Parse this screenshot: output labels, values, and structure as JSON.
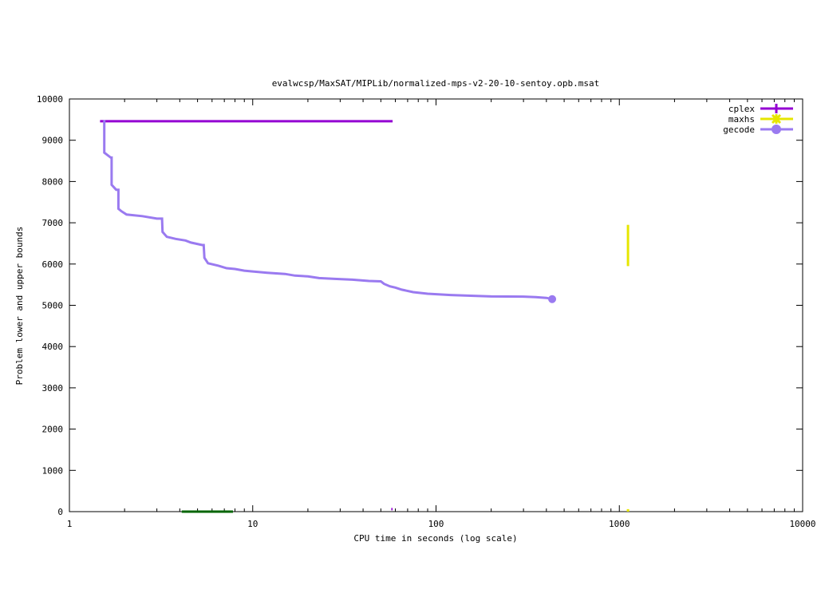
{
  "chart_data": {
    "type": "line",
    "title": "evalwcsp/MaxSAT/MIPLib/normalized-mps-v2-20-10-sentoy.opb.msat",
    "xlabel": "CPU time in seconds (log scale)",
    "ylabel": "Problem lower and upper bounds",
    "x_scale": "log",
    "xlim": [
      1,
      10000
    ],
    "ylim": [
      0,
      10000
    ],
    "x_ticks": [
      1,
      10,
      100,
      1000,
      10000
    ],
    "x_tick_labels": [
      "1",
      "10",
      "100",
      "1000",
      "10000"
    ],
    "y_ticks": [
      0,
      1000,
      2000,
      3000,
      4000,
      5000,
      6000,
      7000,
      8000,
      9000,
      10000
    ],
    "y_tick_labels": [
      "0",
      "1000",
      "2000",
      "3000",
      "4000",
      "5000",
      "6000",
      "7000",
      "8000",
      "9000",
      "10000"
    ],
    "grid": false,
    "legend_position": "top-right",
    "series": [
      {
        "name": "cplex",
        "color": "#9400d3",
        "marker": "plus",
        "points": [
          [
            1.47,
            9460
          ],
          [
            58,
            9460
          ]
        ],
        "lower_points": [
          [
            57,
            60
          ],
          [
            58,
            60
          ]
        ]
      },
      {
        "name": "maxhs",
        "color": "#e6e600",
        "marker": "star",
        "points": [
          [
            1115,
            6950
          ],
          [
            1115,
            5950
          ]
        ],
        "lower_points": [
          [
            1115,
            0
          ],
          [
            1115,
            60
          ]
        ]
      },
      {
        "name": "gecode",
        "color": "#9a7af0",
        "marker": "circle",
        "points": [
          [
            1.53,
            9460
          ],
          [
            1.55,
            9460
          ],
          [
            1.55,
            8700
          ],
          [
            1.68,
            8580
          ],
          [
            1.7,
            8580
          ],
          [
            1.7,
            7920
          ],
          [
            1.8,
            7800
          ],
          [
            1.85,
            7800
          ],
          [
            1.85,
            7340
          ],
          [
            1.92,
            7280
          ],
          [
            2.05,
            7200
          ],
          [
            2.5,
            7160
          ],
          [
            3.0,
            7100
          ],
          [
            3.2,
            7100
          ],
          [
            3.22,
            6780
          ],
          [
            3.4,
            6660
          ],
          [
            3.8,
            6610
          ],
          [
            4.3,
            6570
          ],
          [
            4.6,
            6520
          ],
          [
            5.3,
            6460
          ],
          [
            5.4,
            6460
          ],
          [
            5.45,
            6150
          ],
          [
            5.7,
            6020
          ],
          [
            6.5,
            5960
          ],
          [
            7.2,
            5900
          ],
          [
            8.0,
            5880
          ],
          [
            9.0,
            5840
          ],
          [
            10,
            5820
          ],
          [
            12,
            5790
          ],
          [
            15,
            5760
          ],
          [
            17,
            5720
          ],
          [
            20,
            5700
          ],
          [
            23,
            5660
          ],
          [
            28,
            5640
          ],
          [
            35,
            5620
          ],
          [
            43,
            5590
          ],
          [
            50,
            5580
          ],
          [
            52,
            5520
          ],
          [
            56,
            5460
          ],
          [
            60,
            5430
          ],
          [
            65,
            5380
          ],
          [
            75,
            5320
          ],
          [
            90,
            5280
          ],
          [
            120,
            5250
          ],
          [
            160,
            5230
          ],
          [
            200,
            5215
          ],
          [
            300,
            5210
          ],
          [
            350,
            5200
          ],
          [
            400,
            5180
          ],
          [
            430,
            5150
          ]
        ],
        "end_marker": [
          430,
          5150
        ]
      },
      {
        "name": "",
        "color": "#006400",
        "points": [
          [
            4.1,
            0
          ],
          [
            7.8,
            0
          ]
        ]
      }
    ]
  }
}
